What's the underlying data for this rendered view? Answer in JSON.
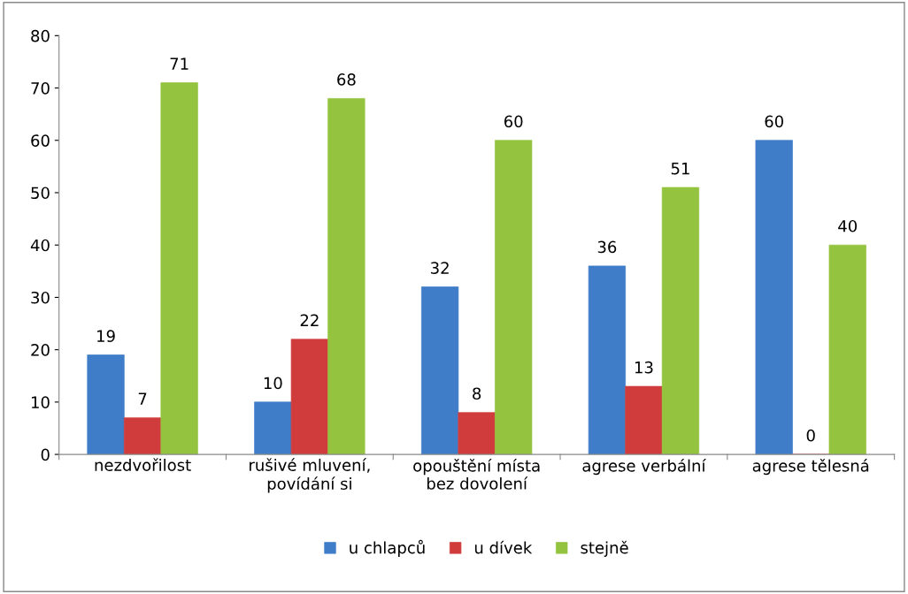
{
  "chart_data": {
    "type": "bar",
    "categories": [
      "nezdvořilost",
      "rušivé mluvení,\npovídání si",
      "opouštění místa\nbez dovolení",
      "agrese verbální",
      "agrese tělesná"
    ],
    "series": [
      {
        "name": "u chlapců",
        "color": "#3f7dc8",
        "values": [
          19,
          10,
          32,
          36,
          60
        ]
      },
      {
        "name": "u dívek",
        "color": "#d03c3c",
        "values": [
          7,
          22,
          8,
          13,
          0
        ]
      },
      {
        "name": "stejně",
        "color": "#94c43f",
        "values": [
          71,
          68,
          60,
          51,
          40
        ]
      }
    ],
    "ylim": [
      0,
      80
    ],
    "yticks": [
      0,
      10,
      20,
      30,
      40,
      50,
      60,
      70,
      80
    ],
    "data_labels": true,
    "grid": false,
    "legend": "bottom"
  }
}
